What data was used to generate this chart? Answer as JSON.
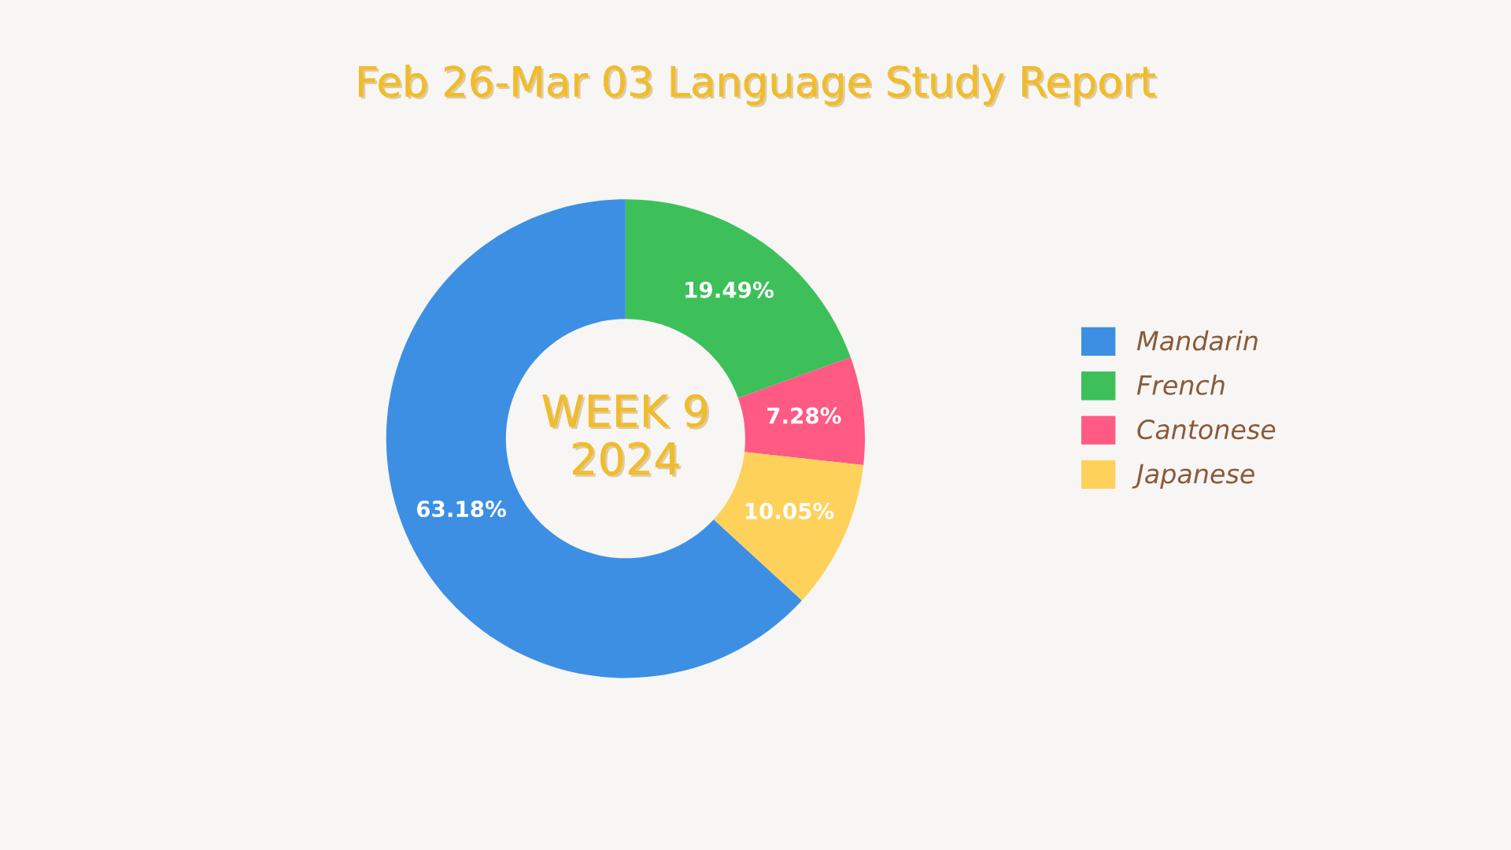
{
  "chart_data": {
    "type": "donut",
    "title": "Feb 26-Mar 03 Language Study Report",
    "categories": [
      "Mandarin",
      "French",
      "Cantonese",
      "Japanese"
    ],
    "values": [
      63.18,
      19.49,
      7.28,
      10.05
    ],
    "colors": [
      "#3d8fe3",
      "#3dc05a",
      "#fe5a84",
      "#fed15b"
    ],
    "value_labels": [
      "63.18%",
      "19.49%",
      "7.28%",
      "10.05%"
    ],
    "annotations": [
      "WEEK 9",
      "2024"
    ],
    "legend": "right"
  }
}
